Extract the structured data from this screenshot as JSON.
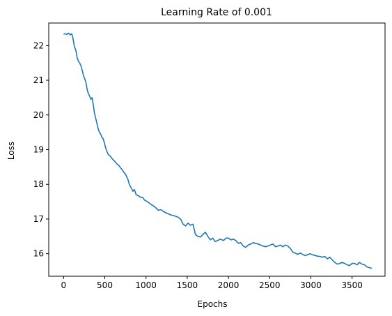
{
  "chart_data": {
    "type": "line",
    "title": "Learning Rate of 0.001",
    "xlabel": "Epochs",
    "ylabel": "Loss",
    "xlim": [
      -180,
      3900
    ],
    "ylim": [
      15.35,
      22.65
    ],
    "x_ticks": [
      0,
      500,
      1000,
      1500,
      2000,
      2500,
      3000,
      3500
    ],
    "y_ticks": [
      16,
      17,
      18,
      19,
      20,
      21,
      22
    ],
    "grid": false,
    "legend": "none",
    "series": [
      {
        "color": "#1f77b4",
        "points": [
          [
            0,
            22.33
          ],
          [
            20,
            22.34
          ],
          [
            40,
            22.32
          ],
          [
            60,
            22.36
          ],
          [
            80,
            22.31
          ],
          [
            100,
            22.34
          ],
          [
            115,
            22.2
          ],
          [
            125,
            22.05
          ],
          [
            135,
            21.95
          ],
          [
            150,
            21.85
          ],
          [
            165,
            21.65
          ],
          [
            180,
            21.55
          ],
          [
            195,
            21.5
          ],
          [
            210,
            21.42
          ],
          [
            225,
            21.3
          ],
          [
            240,
            21.15
          ],
          [
            255,
            21.05
          ],
          [
            270,
            20.95
          ],
          [
            285,
            20.75
          ],
          [
            300,
            20.62
          ],
          [
            315,
            20.55
          ],
          [
            330,
            20.45
          ],
          [
            345,
            20.5
          ],
          [
            360,
            20.3
          ],
          [
            375,
            20.05
          ],
          [
            390,
            19.9
          ],
          [
            405,
            19.75
          ],
          [
            420,
            19.6
          ],
          [
            435,
            19.5
          ],
          [
            450,
            19.45
          ],
          [
            465,
            19.35
          ],
          [
            480,
            19.32
          ],
          [
            495,
            19.2
          ],
          [
            510,
            19.05
          ],
          [
            525,
            18.95
          ],
          [
            545,
            18.85
          ],
          [
            565,
            18.82
          ],
          [
            585,
            18.75
          ],
          [
            605,
            18.7
          ],
          [
            625,
            18.65
          ],
          [
            650,
            18.58
          ],
          [
            670,
            18.55
          ],
          [
            690,
            18.48
          ],
          [
            710,
            18.42
          ],
          [
            730,
            18.35
          ],
          [
            750,
            18.3
          ],
          [
            765,
            18.22
          ],
          [
            780,
            18.15
          ],
          [
            800,
            17.98
          ],
          [
            820,
            17.9
          ],
          [
            840,
            17.8
          ],
          [
            860,
            17.85
          ],
          [
            880,
            17.7
          ],
          [
            900,
            17.68
          ],
          [
            920,
            17.65
          ],
          [
            940,
            17.62
          ],
          [
            960,
            17.62
          ],
          [
            980,
            17.55
          ],
          [
            1000,
            17.52
          ],
          [
            1030,
            17.48
          ],
          [
            1060,
            17.42
          ],
          [
            1090,
            17.38
          ],
          [
            1120,
            17.32
          ],
          [
            1150,
            17.25
          ],
          [
            1180,
            17.27
          ],
          [
            1210,
            17.22
          ],
          [
            1240,
            17.18
          ],
          [
            1270,
            17.15
          ],
          [
            1300,
            17.12
          ],
          [
            1330,
            17.1
          ],
          [
            1360,
            17.08
          ],
          [
            1390,
            17.05
          ],
          [
            1420,
            17.0
          ],
          [
            1450,
            16.85
          ],
          [
            1480,
            16.8
          ],
          [
            1510,
            16.88
          ],
          [
            1540,
            16.82
          ],
          [
            1570,
            16.85
          ],
          [
            1600,
            16.55
          ],
          [
            1630,
            16.5
          ],
          [
            1660,
            16.48
          ],
          [
            1690,
            16.55
          ],
          [
            1720,
            16.62
          ],
          [
            1750,
            16.5
          ],
          [
            1780,
            16.4
          ],
          [
            1810,
            16.45
          ],
          [
            1840,
            16.35
          ],
          [
            1870,
            16.38
          ],
          [
            1900,
            16.42
          ],
          [
            1940,
            16.38
          ],
          [
            1970,
            16.45
          ],
          [
            2000,
            16.45
          ],
          [
            2030,
            16.4
          ],
          [
            2060,
            16.42
          ],
          [
            2090,
            16.38
          ],
          [
            2120,
            16.3
          ],
          [
            2150,
            16.32
          ],
          [
            2180,
            16.22
          ],
          [
            2210,
            16.18
          ],
          [
            2240,
            16.25
          ],
          [
            2270,
            16.28
          ],
          [
            2300,
            16.32
          ],
          [
            2330,
            16.3
          ],
          [
            2360,
            16.28
          ],
          [
            2390,
            16.25
          ],
          [
            2420,
            16.22
          ],
          [
            2450,
            16.2
          ],
          [
            2480,
            16.22
          ],
          [
            2510,
            16.25
          ],
          [
            2540,
            16.28
          ],
          [
            2570,
            16.2
          ],
          [
            2600,
            16.22
          ],
          [
            2630,
            16.25
          ],
          [
            2660,
            16.2
          ],
          [
            2690,
            16.25
          ],
          [
            2720,
            16.22
          ],
          [
            2750,
            16.15
          ],
          [
            2780,
            16.05
          ],
          [
            2810,
            16.02
          ],
          [
            2840,
            15.98
          ],
          [
            2870,
            16.02
          ],
          [
            2900,
            15.98
          ],
          [
            2930,
            15.95
          ],
          [
            2960,
            15.97
          ],
          [
            2990,
            16.0
          ],
          [
            3020,
            15.97
          ],
          [
            3050,
            15.95
          ],
          [
            3080,
            15.93
          ],
          [
            3110,
            15.92
          ],
          [
            3140,
            15.9
          ],
          [
            3170,
            15.92
          ],
          [
            3200,
            15.85
          ],
          [
            3230,
            15.9
          ],
          [
            3260,
            15.82
          ],
          [
            3290,
            15.75
          ],
          [
            3320,
            15.7
          ],
          [
            3350,
            15.72
          ],
          [
            3380,
            15.75
          ],
          [
            3410,
            15.72
          ],
          [
            3440,
            15.68
          ],
          [
            3470,
            15.66
          ],
          [
            3500,
            15.72
          ],
          [
            3530,
            15.72
          ],
          [
            3560,
            15.68
          ],
          [
            3590,
            15.75
          ],
          [
            3620,
            15.7
          ],
          [
            3650,
            15.68
          ],
          [
            3680,
            15.62
          ],
          [
            3710,
            15.6
          ],
          [
            3740,
            15.58
          ]
        ]
      }
    ]
  }
}
